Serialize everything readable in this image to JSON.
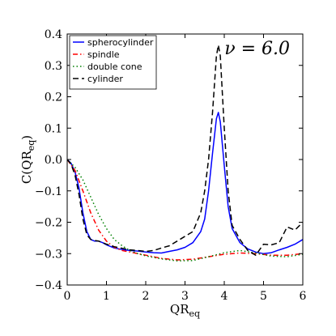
{
  "chart_data": {
    "type": "line",
    "xlabel": "QR",
    "xlabel_sub": "eq",
    "ylabel": "C(QR",
    "ylabel_sub": "eq",
    "ylabel_close": ")",
    "xlim": [
      0,
      6
    ],
    "ylim": [
      -0.4,
      0.4
    ],
    "xticks": [
      0,
      1,
      2,
      3,
      4,
      5,
      6
    ],
    "yticks": [
      -0.4,
      -0.3,
      -0.2,
      -0.1,
      0.0,
      0.1,
      0.2,
      0.3,
      0.4
    ],
    "xtick_labels": [
      "0",
      "1",
      "2",
      "3",
      "4",
      "5",
      "6"
    ],
    "ytick_labels": [
      "−0.4",
      "−0.3",
      "−0.2",
      "−0.1",
      "0.0",
      "0.1",
      "0.2",
      "0.3",
      "0.4"
    ],
    "grid": false,
    "legend_position": "top-left",
    "annotation": "ν = 6.0",
    "series": [
      {
        "name": "spherocylinder",
        "color": "#0000ff",
        "dash": "solid",
        "x": [
          0,
          0.1,
          0.2,
          0.3,
          0.4,
          0.5,
          0.6,
          0.7,
          0.8,
          0.9,
          1.0,
          1.2,
          1.4,
          1.6,
          1.8,
          2.0,
          2.2,
          2.4,
          2.6,
          2.8,
          3.0,
          3.2,
          3.4,
          3.5,
          3.6,
          3.7,
          3.8,
          3.85,
          3.9,
          4.0,
          4.1,
          4.2,
          4.4,
          4.6,
          4.8,
          5.0,
          5.2,
          5.4,
          5.6,
          5.8,
          6.0
        ],
        "y": [
          0.0,
          -0.012,
          -0.04,
          -0.09,
          -0.17,
          -0.23,
          -0.255,
          -0.26,
          -0.26,
          -0.265,
          -0.272,
          -0.282,
          -0.287,
          -0.29,
          -0.292,
          -0.295,
          -0.297,
          -0.298,
          -0.293,
          -0.288,
          -0.28,
          -0.265,
          -0.23,
          -0.19,
          -0.1,
          0.02,
          0.13,
          0.15,
          0.12,
          -0.02,
          -0.15,
          -0.22,
          -0.265,
          -0.285,
          -0.295,
          -0.3,
          -0.297,
          -0.288,
          -0.28,
          -0.27,
          -0.255
        ]
      },
      {
        "name": "spindle",
        "color": "#ff0000",
        "dash": "dashdot",
        "x": [
          0,
          0.2,
          0.4,
          0.6,
          0.8,
          1.0,
          1.2,
          1.4,
          1.6,
          1.8,
          2.0,
          2.4,
          2.8,
          3.2,
          3.6,
          4.0,
          4.4,
          4.8,
          5.2,
          5.6,
          6.0
        ],
        "y": [
          0.0,
          -0.035,
          -0.1,
          -0.17,
          -0.225,
          -0.26,
          -0.28,
          -0.29,
          -0.295,
          -0.3,
          -0.305,
          -0.315,
          -0.32,
          -0.318,
          -0.31,
          -0.302,
          -0.298,
          -0.3,
          -0.305,
          -0.305,
          -0.3
        ]
      },
      {
        "name": "double cone",
        "color": "#008000",
        "dash": "dotted",
        "x": [
          0,
          0.2,
          0.4,
          0.6,
          0.8,
          1.0,
          1.2,
          1.4,
          1.6,
          1.8,
          2.0,
          2.4,
          2.8,
          3.2,
          3.6,
          4.0,
          4.4,
          4.8,
          5.2,
          5.6,
          6.0
        ],
        "y": [
          0.0,
          -0.025,
          -0.065,
          -0.12,
          -0.175,
          -0.22,
          -0.255,
          -0.275,
          -0.29,
          -0.3,
          -0.307,
          -0.317,
          -0.323,
          -0.322,
          -0.31,
          -0.297,
          -0.29,
          -0.298,
          -0.308,
          -0.31,
          -0.302
        ]
      },
      {
        "name": "cylinder",
        "color": "#000000",
        "dash": "dashed",
        "x": [
          0,
          0.1,
          0.2,
          0.3,
          0.4,
          0.5,
          0.6,
          0.7,
          0.8,
          0.9,
          1.0,
          1.2,
          1.4,
          1.6,
          1.8,
          2.0,
          2.2,
          2.4,
          2.6,
          2.8,
          3.0,
          3.2,
          3.4,
          3.5,
          3.6,
          3.7,
          3.8,
          3.85,
          3.9,
          4.0,
          4.1,
          4.2,
          4.4,
          4.6,
          4.8,
          5.0,
          5.2,
          5.4,
          5.6,
          5.8,
          6.0
        ],
        "y": [
          0.0,
          -0.015,
          -0.05,
          -0.11,
          -0.19,
          -0.24,
          -0.255,
          -0.258,
          -0.26,
          -0.265,
          -0.27,
          -0.278,
          -0.283,
          -0.288,
          -0.29,
          -0.293,
          -0.29,
          -0.282,
          -0.275,
          -0.26,
          -0.245,
          -0.23,
          -0.17,
          -0.1,
          0.0,
          0.15,
          0.33,
          0.365,
          0.33,
          0.1,
          -0.1,
          -0.21,
          -0.255,
          -0.29,
          -0.305,
          -0.27,
          -0.272,
          -0.265,
          -0.215,
          -0.225,
          -0.2
        ]
      }
    ]
  }
}
